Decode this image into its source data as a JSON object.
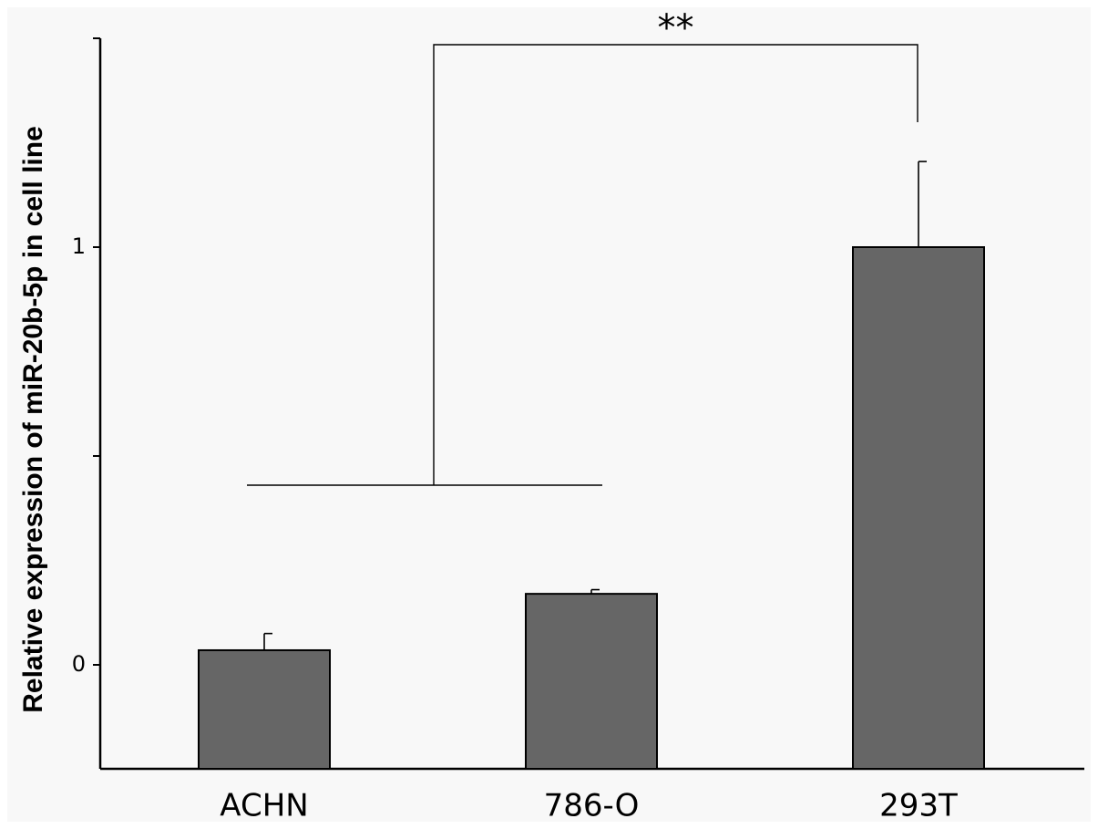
{
  "chart_data": {
    "type": "bar",
    "title": "",
    "xlabel": "",
    "ylabel": "Relative expression of miR-20b-5p in cell line",
    "categories": [
      "ACHN",
      "786-O",
      "293T"
    ],
    "values": [
      0.035,
      0.17,
      1.0
    ],
    "errors": [
      0.04,
      0.01,
      0.205
    ],
    "ylim": [
      -0.25,
      1.5
    ],
    "yticks": [
      0,
      0.5,
      1
    ],
    "ytick_labels": [
      "0",
      "",
      "1"
    ],
    "bar_color": "#666666",
    "significance": {
      "label": "**",
      "from": [
        "ACHN",
        "786-O"
      ],
      "to": "293T"
    },
    "background": "#f8f8f8"
  }
}
